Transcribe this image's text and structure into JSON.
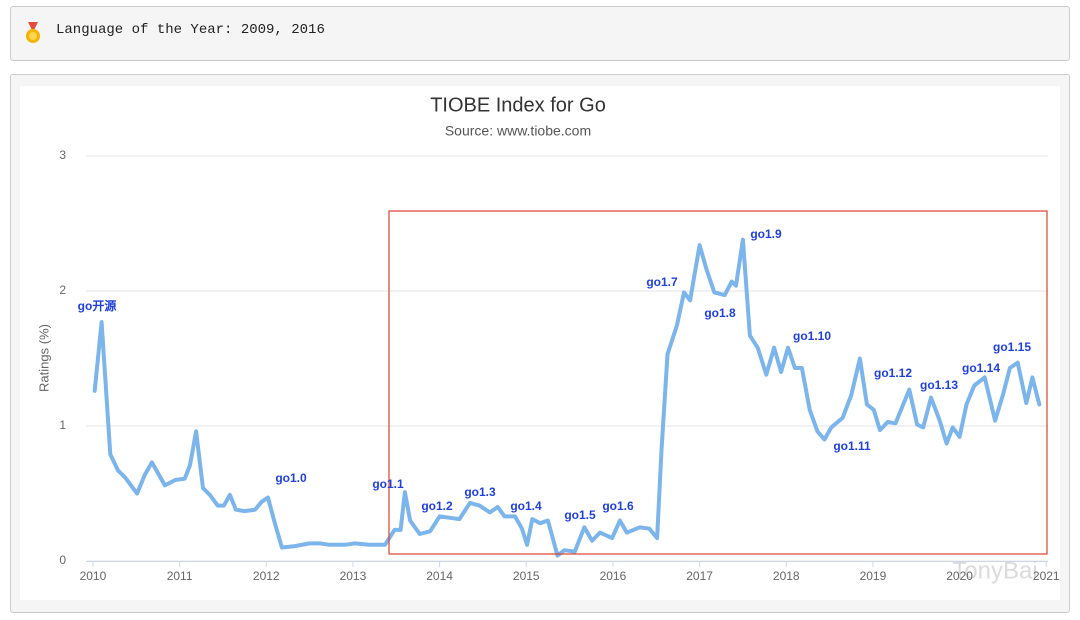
{
  "header": {
    "text": "Language of the Year: 2009, 2016"
  },
  "chart_data": {
    "type": "line",
    "title": "TIOBE Index for Go",
    "subtitle": "Source: www.tiobe.com",
    "y_label": "Ratings (%)",
    "x": [
      2010.02,
      2010.1,
      2010.2,
      2010.29,
      2010.37,
      2010.51,
      2010.6,
      2010.68,
      2010.83,
      2010.95,
      2011.06,
      2011.12,
      2011.19,
      2011.27,
      2011.35,
      2011.44,
      2011.51,
      2011.58,
      2011.65,
      2011.75,
      2011.87,
      2011.95,
      2012.02,
      2012.09,
      2012.18,
      2012.33,
      2012.5,
      2012.62,
      2012.73,
      2012.91,
      2013.02,
      2013.19,
      2013.37,
      2013.48,
      2013.55,
      2013.6,
      2013.66,
      2013.77,
      2013.89,
      2014.0,
      2014.12,
      2014.23,
      2014.35,
      2014.46,
      2014.58,
      2014.67,
      2014.75,
      2014.87,
      2014.95,
      2015.01,
      2015.07,
      2015.16,
      2015.25,
      2015.31,
      2015.36,
      2015.44,
      2015.56,
      2015.67,
      2015.76,
      2015.85,
      2015.99,
      2016.08,
      2016.16,
      2016.31,
      2016.42,
      2016.51,
      2016.56,
      2016.63,
      2016.74,
      2016.82,
      2016.89,
      2017.0,
      2017.08,
      2017.17,
      2017.29,
      2017.37,
      2017.42,
      2017.5,
      2017.58,
      2017.67,
      2017.77,
      2017.86,
      2017.94,
      2018.02,
      2018.1,
      2018.18,
      2018.27,
      2018.36,
      2018.44,
      2018.52,
      2018.65,
      2018.75,
      2018.85,
      2018.93,
      2019.01,
      2019.08,
      2019.17,
      2019.26,
      2019.42,
      2019.51,
      2019.58,
      2019.67,
      2019.77,
      2019.85,
      2019.92,
      2020.0,
      2020.08,
      2020.17,
      2020.29,
      2020.41,
      2020.5,
      2020.58,
      2020.67,
      2020.77,
      2020.84,
      2020.92
    ],
    "values": [
      1.26,
      1.77,
      0.79,
      0.67,
      0.62,
      0.5,
      0.64,
      0.73,
      0.56,
      0.6,
      0.61,
      0.71,
      0.96,
      0.54,
      0.49,
      0.41,
      0.41,
      0.49,
      0.38,
      0.37,
      0.38,
      0.44,
      0.47,
      0.3,
      0.1,
      0.11,
      0.13,
      0.13,
      0.12,
      0.12,
      0.13,
      0.12,
      0.12,
      0.23,
      0.23,
      0.51,
      0.3,
      0.2,
      0.22,
      0.33,
      0.32,
      0.31,
      0.43,
      0.41,
      0.36,
      0.4,
      0.33,
      0.33,
      0.24,
      0.12,
      0.31,
      0.28,
      0.3,
      0.16,
      0.04,
      0.08,
      0.07,
      0.25,
      0.15,
      0.21,
      0.17,
      0.3,
      0.21,
      0.25,
      0.24,
      0.17,
      0.82,
      1.53,
      1.75,
      1.99,
      1.93,
      2.34,
      2.16,
      1.99,
      1.97,
      2.07,
      2.04,
      2.38,
      1.67,
      1.58,
      1.38,
      1.58,
      1.4,
      1.58,
      1.43,
      1.43,
      1.12,
      0.96,
      0.9,
      0.99,
      1.06,
      1.23,
      1.5,
      1.16,
      1.12,
      0.97,
      1.03,
      1.02,
      1.27,
      1.01,
      0.99,
      1.21,
      1.04,
      0.87,
      0.99,
      0.92,
      1.16,
      1.3,
      1.36,
      1.04,
      1.23,
      1.43,
      1.47,
      1.17,
      1.36,
      1.16
    ],
    "color": "#7cb5ec",
    "xlim": [
      2009.92,
      2021.02
    ],
    "xticks": [
      2010,
      2011,
      2012,
      2013,
      2014,
      2015,
      2016,
      2017,
      2018,
      2019,
      2020,
      2021
    ],
    "ylim": [
      0,
      3
    ],
    "yticks": [
      0,
      1,
      2,
      3
    ],
    "grid": true,
    "annotations": [
      "go开源",
      "go1.0",
      "go1.1",
      "go1.2",
      "go1.3",
      "go1.4",
      "go1.5",
      "go1.6",
      "go1.7",
      "go1.8",
      "go1.9",
      "go1.10",
      "go1.11",
      "go1.12",
      "go1.13",
      "go1.14",
      "go1.15"
    ],
    "watermark": "TonyBai"
  }
}
